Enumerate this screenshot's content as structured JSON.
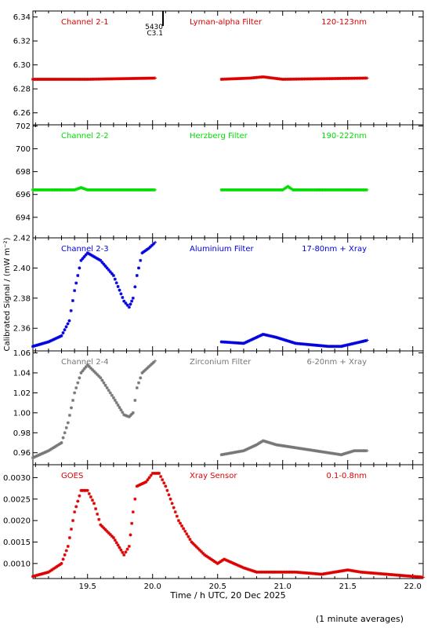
{
  "chart_data": {
    "type": "scatter",
    "x_axis": {
      "label": "Time / h UTC, 20 Dec 2025",
      "range": [
        19.08,
        22.08
      ],
      "ticks": [
        "19.5",
        "20.0",
        "20.5",
        "21.0",
        "21.5",
        "22.0"
      ]
    },
    "y_axis_label": "Calibrated Signal / (mW m⁻²)",
    "footnote": "(1 minute averages)",
    "flare_marker": {
      "time": 20.08,
      "labels": [
        "5430",
        "C3.1"
      ]
    },
    "panels": [
      {
        "channel": "Channel 2-1",
        "filter": "Lyman-alpha Filter",
        "band": "120-123nm",
        "color": "#dd0000",
        "ylim": [
          6.25,
          6.345
        ],
        "yticks": [
          "6.26",
          "6.28",
          "6.30",
          "6.32",
          "6.34"
        ],
        "segments": [
          {
            "x": [
              19.08,
              19.5,
              20.02
            ],
            "y": [
              6.288,
              6.288,
              6.289
            ]
          },
          {
            "x": [
              20.53,
              20.75,
              20.85,
              21.0,
              21.65
            ],
            "y": [
              6.288,
              6.289,
              6.29,
              6.288,
              6.289
            ]
          }
        ]
      },
      {
        "channel": "Channel 2-2",
        "filter": "Herzberg Filter",
        "band": "190-222nm",
        "color": "#00dd00",
        "ylim": [
          692.2,
          702.1
        ],
        "yticks": [
          "694",
          "696",
          "698",
          "700",
          "702"
        ],
        "segments": [
          {
            "x": [
              19.08,
              19.4,
              19.45,
              19.5,
              20.02
            ],
            "y": [
              696.4,
              696.4,
              696.6,
              696.4,
              696.4
            ]
          },
          {
            "x": [
              20.53,
              21.0,
              21.04,
              21.08,
              21.65
            ],
            "y": [
              696.4,
              696.4,
              696.7,
              696.4,
              696.4
            ]
          }
        ]
      },
      {
        "channel": "Channel 2-3",
        "filter": "Aluminium Filter",
        "band": "17-80nm + Xray",
        "color": "#0000dd",
        "ylim": [
          2.345,
          2.42
        ],
        "yticks": [
          "2.36",
          "2.38",
          "2.40",
          "2.42"
        ],
        "segments": [
          {
            "x": [
              19.08,
              19.2,
              19.3,
              19.36,
              19.4,
              19.45,
              19.5,
              19.6,
              19.7,
              19.78,
              19.82,
              19.85,
              19.88,
              19.92,
              19.97,
              20.02
            ],
            "y": [
              2.348,
              2.351,
              2.355,
              2.365,
              2.385,
              2.405,
              2.41,
              2.405,
              2.395,
              2.378,
              2.374,
              2.38,
              2.395,
              2.41,
              2.413,
              2.417
            ]
          },
          {
            "x": [
              20.53,
              20.7,
              20.8,
              20.85,
              20.95,
              21.1,
              21.35,
              21.45,
              21.55,
              21.65
            ],
            "y": [
              2.351,
              2.35,
              2.354,
              2.356,
              2.354,
              2.35,
              2.348,
              2.348,
              2.35,
              2.352
            ]
          }
        ]
      },
      {
        "channel": "Channel 2-4",
        "filter": "Zirconium Filter",
        "band": "6-20nm + Xray",
        "color": "#777777",
        "ylim": [
          0.948,
          1.062
        ],
        "yticks": [
          "0.96",
          "0.98",
          "1.00",
          "1.02",
          "1.04",
          "1.06"
        ],
        "segments": [
          {
            "x": [
              19.08,
              19.2,
              19.3,
              19.35,
              19.4,
              19.45,
              19.5,
              19.6,
              19.7,
              19.78,
              19.82,
              19.85,
              19.88,
              19.92,
              19.97,
              20.02
            ],
            "y": [
              0.955,
              0.962,
              0.97,
              0.99,
              1.02,
              1.04,
              1.048,
              1.035,
              1.015,
              0.998,
              0.996,
              1.0,
              1.025,
              1.04,
              1.046,
              1.052
            ]
          },
          {
            "x": [
              20.53,
              20.7,
              20.8,
              20.85,
              20.95,
              21.1,
              21.35,
              21.45,
              21.55,
              21.65
            ],
            "y": [
              0.958,
              0.962,
              0.968,
              0.972,
              0.968,
              0.965,
              0.96,
              0.958,
              0.962,
              0.962
            ]
          }
        ]
      },
      {
        "channel": "GOES",
        "filter": "Xray Sensor",
        "band": "0.1-0.8nm",
        "color": "#dd0000",
        "ylim": [
          0.00065,
          0.0033
        ],
        "yticks": [
          "0.0010",
          "0.0015",
          "0.0020",
          "0.0025",
          "0.0030"
        ],
        "segments": [
          {
            "x": [
              19.08,
              19.2,
              19.3,
              19.35,
              19.4,
              19.45,
              19.5,
              19.55,
              19.6,
              19.7,
              19.78,
              19.82,
              19.85,
              19.88,
              19.95,
              20.0,
              20.05,
              20.1,
              20.2,
              20.3,
              20.4,
              20.5,
              20.55,
              20.7,
              20.8,
              20.9,
              21.1,
              21.3,
              21.5,
              21.6,
              21.8,
              22.0,
              22.08
            ],
            "y": [
              0.0007,
              0.0008,
              0.001,
              0.0014,
              0.0022,
              0.0027,
              0.0027,
              0.0024,
              0.0019,
              0.0016,
              0.0012,
              0.0014,
              0.0022,
              0.0028,
              0.0029,
              0.0031,
              0.0031,
              0.0028,
              0.002,
              0.0015,
              0.0012,
              0.001,
              0.0011,
              0.0009,
              0.0008,
              0.0008,
              0.0008,
              0.00075,
              0.00085,
              0.0008,
              0.00075,
              0.0007,
              0.00068
            ]
          }
        ]
      }
    ]
  }
}
